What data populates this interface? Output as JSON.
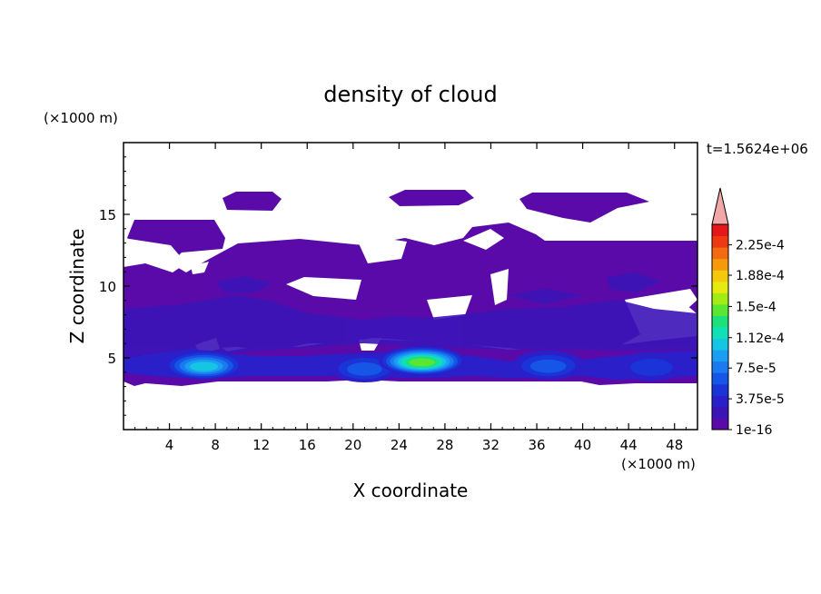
{
  "chart_data": {
    "type": "heatmap",
    "title": "density of cloud",
    "xlabel": "X coordinate",
    "ylabel": "Z coordinate",
    "x_unit": "(×1000 m)",
    "y_unit": "(×1000 m)",
    "time_label": "t=1.5624e+06",
    "xlim": [
      0,
      50
    ],
    "ylim": [
      0,
      20
    ],
    "x_ticks": [
      4,
      8,
      12,
      16,
      20,
      24,
      28,
      32,
      36,
      40,
      44,
      48
    ],
    "y_ticks": [
      5,
      10,
      15
    ],
    "colorbar": {
      "min": 1e-16,
      "max": 0.00025,
      "labels": [
        {
          "value": 1e-16,
          "text": "1e-16"
        },
        {
          "value": 3.75e-05,
          "text": "3.75e-5"
        },
        {
          "value": 7.5e-05,
          "text": "7.5e-5"
        },
        {
          "value": 0.000112,
          "text": "1.12e-4"
        },
        {
          "value": 0.00015,
          "text": "1.5e-4"
        },
        {
          "value": 0.000188,
          "text": "1.88e-4"
        },
        {
          "value": 0.000225,
          "text": "2.25e-4"
        }
      ],
      "colors": [
        "#5a0aa8",
        "#3b14b8",
        "#2a1fc8",
        "#1a34d8",
        "#1556e6",
        "#1b7af0",
        "#1a9ef2",
        "#14c6e2",
        "#10e0b8",
        "#1ce07a",
        "#5ae632",
        "#a2ec16",
        "#e6ea10",
        "#f6c80c",
        "#f69a0c",
        "#f46a10",
        "#ee3a12",
        "#e41818"
      ],
      "extend_color": "#f0a8a8"
    },
    "cloud_layer": {
      "z_range": [
        3.3,
        14.5
      ]
    },
    "dense_cores": [
      {
        "x": 7,
        "z": 4.5,
        "level": 0.45
      },
      {
        "x": 21,
        "z": 4.3,
        "level": 0.25
      },
      {
        "x": 26,
        "z": 4.8,
        "level": 0.6
      },
      {
        "x": 37,
        "z": 4.5,
        "level": 0.3
      },
      {
        "x": 46,
        "z": 4.4,
        "level": 0.2
      }
    ]
  }
}
